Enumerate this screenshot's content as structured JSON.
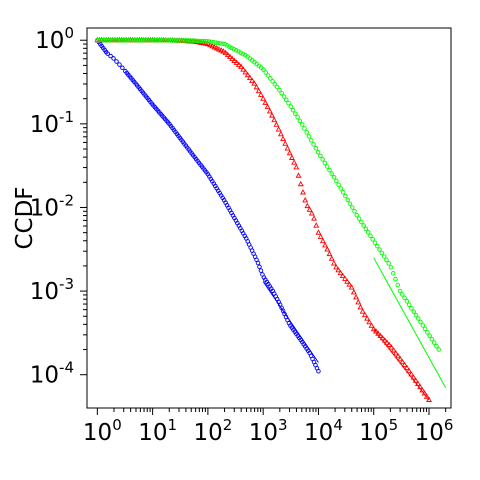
{
  "chart_data": {
    "type": "scatter",
    "title": "",
    "xlabel": "",
    "ylabel": "CCDF",
    "x_scale": "log",
    "y_scale": "log",
    "xlim": [
      0.65,
      2500000
    ],
    "ylim": [
      4e-05,
      1.4
    ],
    "grid": false,
    "legend": "none",
    "x_ticks": [
      {
        "base": "10",
        "exp": "0",
        "value": 1
      },
      {
        "base": "10",
        "exp": "1",
        "value": 10
      },
      {
        "base": "10",
        "exp": "2",
        "value": 100
      },
      {
        "base": "10",
        "exp": "3",
        "value": 1000
      },
      {
        "base": "10",
        "exp": "4",
        "value": 10000
      },
      {
        "base": "10",
        "exp": "5",
        "value": 100000
      },
      {
        "base": "10",
        "exp": "6",
        "value": 1000000
      }
    ],
    "y_ticks": [
      {
        "base": "10",
        "exp": "0",
        "value": 1
      },
      {
        "base": "10",
        "exp": "-1",
        "value": 0.1
      },
      {
        "base": "10",
        "exp": "-2",
        "value": 0.01
      },
      {
        "base": "10",
        "exp": "-3",
        "value": 0.001
      },
      {
        "base": "10",
        "exp": "-4",
        "value": 0.0001
      }
    ],
    "series": [
      {
        "color": "#0000ff",
        "marker": "circle",
        "curve": [
          [
            1,
            1.0
          ],
          [
            1.5,
            0.7
          ],
          [
            2,
            0.6
          ],
          [
            3,
            0.45
          ],
          [
            5,
            0.3
          ],
          [
            10,
            0.17
          ],
          [
            20,
            0.1
          ],
          [
            50,
            0.045
          ],
          [
            100,
            0.025
          ],
          [
            200,
            0.012
          ],
          [
            500,
            0.0042
          ],
          [
            800,
            0.0022
          ],
          [
            1000,
            0.0015
          ],
          [
            1500,
            0.001
          ],
          [
            2000,
            0.0007
          ],
          [
            3000,
            0.0004
          ],
          [
            5000,
            0.00025
          ],
          [
            7000,
            0.00018
          ],
          [
            10000,
            0.00011
          ]
        ],
        "fit": [
          [
            1000,
            0.0013
          ],
          [
            10000,
            0.00014
          ]
        ]
      },
      {
        "color": "#ff0000",
        "marker": "triangle",
        "curve": [
          [
            1,
            1.0
          ],
          [
            10,
            1.0
          ],
          [
            30,
            0.99
          ],
          [
            60,
            0.96
          ],
          [
            100,
            0.9
          ],
          [
            200,
            0.72
          ],
          [
            400,
            0.48
          ],
          [
            700,
            0.3
          ],
          [
            1000,
            0.2
          ],
          [
            1500,
            0.12
          ],
          [
            2000,
            0.08
          ],
          [
            3000,
            0.045
          ],
          [
            4000,
            0.03
          ],
          [
            5000,
            0.017
          ],
          [
            6000,
            0.011
          ],
          [
            8000,
            0.008
          ],
          [
            10000,
            0.005
          ],
          [
            15000,
            0.003
          ],
          [
            20000,
            0.002
          ],
          [
            40000,
            0.0011
          ],
          [
            60000,
            0.0006
          ],
          [
            100000,
            0.00035
          ],
          [
            200000,
            0.00022
          ],
          [
            400000,
            0.00012
          ],
          [
            1000000,
            5e-05
          ]
        ],
        "fit": [
          [
            100000,
            0.00035
          ],
          [
            1000000,
            5e-05
          ]
        ]
      },
      {
        "color": "#00ff00",
        "marker": "circle",
        "curve": [
          [
            1,
            1.0
          ],
          [
            10,
            1.0
          ],
          [
            50,
            0.99
          ],
          [
            100,
            0.97
          ],
          [
            200,
            0.9
          ],
          [
            500,
            0.65
          ],
          [
            1000,
            0.45
          ],
          [
            2000,
            0.25
          ],
          [
            3000,
            0.17
          ],
          [
            5000,
            0.1
          ],
          [
            10000,
            0.045
          ],
          [
            20000,
            0.022
          ],
          [
            50000,
            0.008
          ],
          [
            100000,
            0.004
          ],
          [
            200000,
            0.002
          ],
          [
            300000,
            0.001
          ],
          [
            500000,
            0.0006
          ],
          [
            1000000,
            0.0003
          ],
          [
            1500000,
            0.0002
          ]
        ],
        "fit": [
          [
            100000,
            0.0025
          ],
          [
            2000000,
            7e-05
          ]
        ]
      }
    ]
  }
}
